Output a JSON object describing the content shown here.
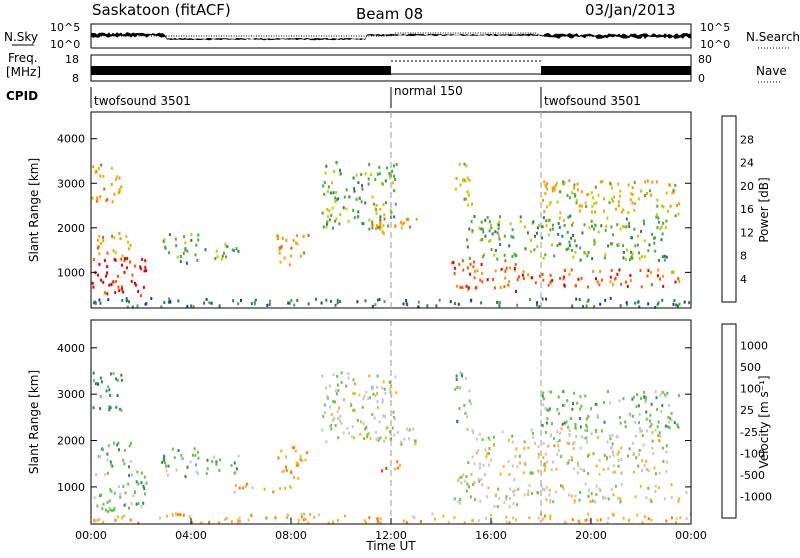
{
  "header": {
    "station": "Saskatoon (fitACF)",
    "beam": "Beam 08",
    "date": "03/Jan/2013"
  },
  "strips": {
    "nsky_label": "N.Sky",
    "nsky_ticks": [
      "10^5",
      "10^0"
    ],
    "nsearch_label": "N.Search",
    "nsearch_ticks": [
      "10^5",
      "10^0"
    ],
    "freq_label_1": "Freq.",
    "freq_label_2": "[MHz]",
    "freq_ticks": [
      "18",
      "8"
    ],
    "nave_label": "Nave",
    "nave_ticks": [
      "80",
      "0"
    ],
    "cpid_label": "CPID",
    "cpid_segments": [
      {
        "label": "twofsound 3501",
        "start_h": 0
      },
      {
        "label": "normal 150",
        "start_h": 12
      },
      {
        "label": "twofsound 3501",
        "start_h": 18
      }
    ]
  },
  "chart_data": [
    {
      "type": "heatmap",
      "panel": "power",
      "ylabel": "Slant Range [km]",
      "xlim": [
        0,
        24
      ],
      "ylim": [
        200,
        4600
      ],
      "ytick_labels": [
        "1000",
        "2000",
        "3000",
        "4000"
      ],
      "colorbar_label": "Power [dB]",
      "colorbar_ticks": [
        "28",
        "24",
        "20",
        "16",
        "12",
        "8",
        "4"
      ],
      "colors": [
        "#0000dd",
        "#1e3c9e",
        "#2e7d5a",
        "#4aaa3c",
        "#c8c800",
        "#ff9900",
        "#ff5500",
        "#e80000"
      ],
      "regions": [
        {
          "t0": 0.0,
          "t1": 2.2,
          "r0": 500,
          "r1": 1400,
          "level": 7
        },
        {
          "t0": 0.2,
          "t1": 1.6,
          "r0": 1400,
          "r1": 2000,
          "level": 5
        },
        {
          "t0": 0.0,
          "t1": 1.2,
          "r0": 2600,
          "r1": 3500,
          "level": 5
        },
        {
          "t0": 2.8,
          "t1": 4.3,
          "r0": 1200,
          "r1": 1900,
          "level": 3
        },
        {
          "t0": 4.5,
          "t1": 6.0,
          "r0": 1300,
          "r1": 1700,
          "level": 3
        },
        {
          "t0": 7.4,
          "t1": 8.7,
          "r0": 1200,
          "r1": 1900,
          "level": 5
        },
        {
          "t0": 9.2,
          "t1": 12.2,
          "r0": 2000,
          "r1": 3500,
          "level": 3
        },
        {
          "t0": 11.0,
          "t1": 13.0,
          "r0": 1900,
          "r1": 2300,
          "level": 5
        },
        {
          "t0": 14.4,
          "t1": 17.0,
          "r0": 600,
          "r1": 1300,
          "level": 6
        },
        {
          "t0": 17.0,
          "t1": 23.8,
          "r0": 700,
          "r1": 1100,
          "level": 6
        },
        {
          "t0": 15.0,
          "t1": 23.0,
          "r0": 1300,
          "r1": 2300,
          "level": 3
        },
        {
          "t0": 18.0,
          "t1": 23.5,
          "r0": 2300,
          "r1": 3100,
          "level": 4
        },
        {
          "t0": 14.5,
          "t1": 15.2,
          "r0": 2400,
          "r1": 3500,
          "level": 4
        },
        {
          "t0": 0.0,
          "t1": 24.0,
          "r0": 250,
          "r1": 450,
          "level": 2
        }
      ]
    },
    {
      "type": "heatmap",
      "panel": "velocity",
      "ylabel": "Slant Range [km]",
      "xlabel": "Time UT",
      "xlim": [
        0,
        24
      ],
      "ylim": [
        200,
        4600
      ],
      "xtick_labels": [
        "00:00",
        "04:00",
        "08:00",
        "12:00",
        "16:00",
        "20:00",
        "00:00"
      ],
      "ytick_labels": [
        "1000",
        "2000",
        "3000",
        "4000"
      ],
      "colorbar_label": "Velocity [m s⁻¹]",
      "colorbar_ticks": [
        "1000",
        "500",
        "100",
        "25",
        "-25",
        "-100",
        "-500",
        "-1000"
      ],
      "colors": [
        "#2244cc",
        "#2f6f9e",
        "#2e8b57",
        "#6cc24a",
        "#c8c8c0",
        "#ffb020",
        "#ff7a00",
        "#ff3300",
        "#e00000"
      ],
      "regions": [
        {
          "t0": 0.0,
          "t1": 2.2,
          "r0": 500,
          "r1": 1400,
          "level": 3
        },
        {
          "t0": 0.2,
          "t1": 1.6,
          "r0": 1400,
          "r1": 2000,
          "level": 3
        },
        {
          "t0": 0.0,
          "t1": 1.2,
          "r0": 2600,
          "r1": 3500,
          "level": 2
        },
        {
          "t0": 2.8,
          "t1": 4.3,
          "r0": 1200,
          "r1": 1900,
          "level": 3
        },
        {
          "t0": 4.5,
          "t1": 6.0,
          "r0": 1300,
          "r1": 1700,
          "level": 3
        },
        {
          "t0": 7.4,
          "t1": 8.7,
          "r0": 1200,
          "r1": 1900,
          "level": 5
        },
        {
          "t0": 9.2,
          "t1": 12.2,
          "r0": 2000,
          "r1": 3500,
          "level": 4
        },
        {
          "t0": 11.0,
          "t1": 13.0,
          "r0": 1900,
          "r1": 2300,
          "level": 4
        },
        {
          "t0": 14.4,
          "t1": 17.0,
          "r0": 600,
          "r1": 1300,
          "level": 4
        },
        {
          "t0": 17.0,
          "t1": 23.8,
          "r0": 700,
          "r1": 1100,
          "level": 4
        },
        {
          "t0": 15.0,
          "t1": 23.0,
          "r0": 1300,
          "r1": 2300,
          "level": 4
        },
        {
          "t0": 18.0,
          "t1": 23.5,
          "r0": 2300,
          "r1": 3100,
          "level": 3
        },
        {
          "t0": 14.5,
          "t1": 15.2,
          "r0": 2400,
          "r1": 3500,
          "level": 3
        },
        {
          "t0": 0.0,
          "t1": 24.0,
          "r0": 250,
          "r1": 450,
          "level": 5
        },
        {
          "t0": 5.5,
          "t1": 8.0,
          "r0": 900,
          "r1": 1100,
          "level": 5
        },
        {
          "t0": 11.6,
          "t1": 12.4,
          "r0": 1300,
          "r1": 1600,
          "level": 6
        }
      ]
    }
  ]
}
